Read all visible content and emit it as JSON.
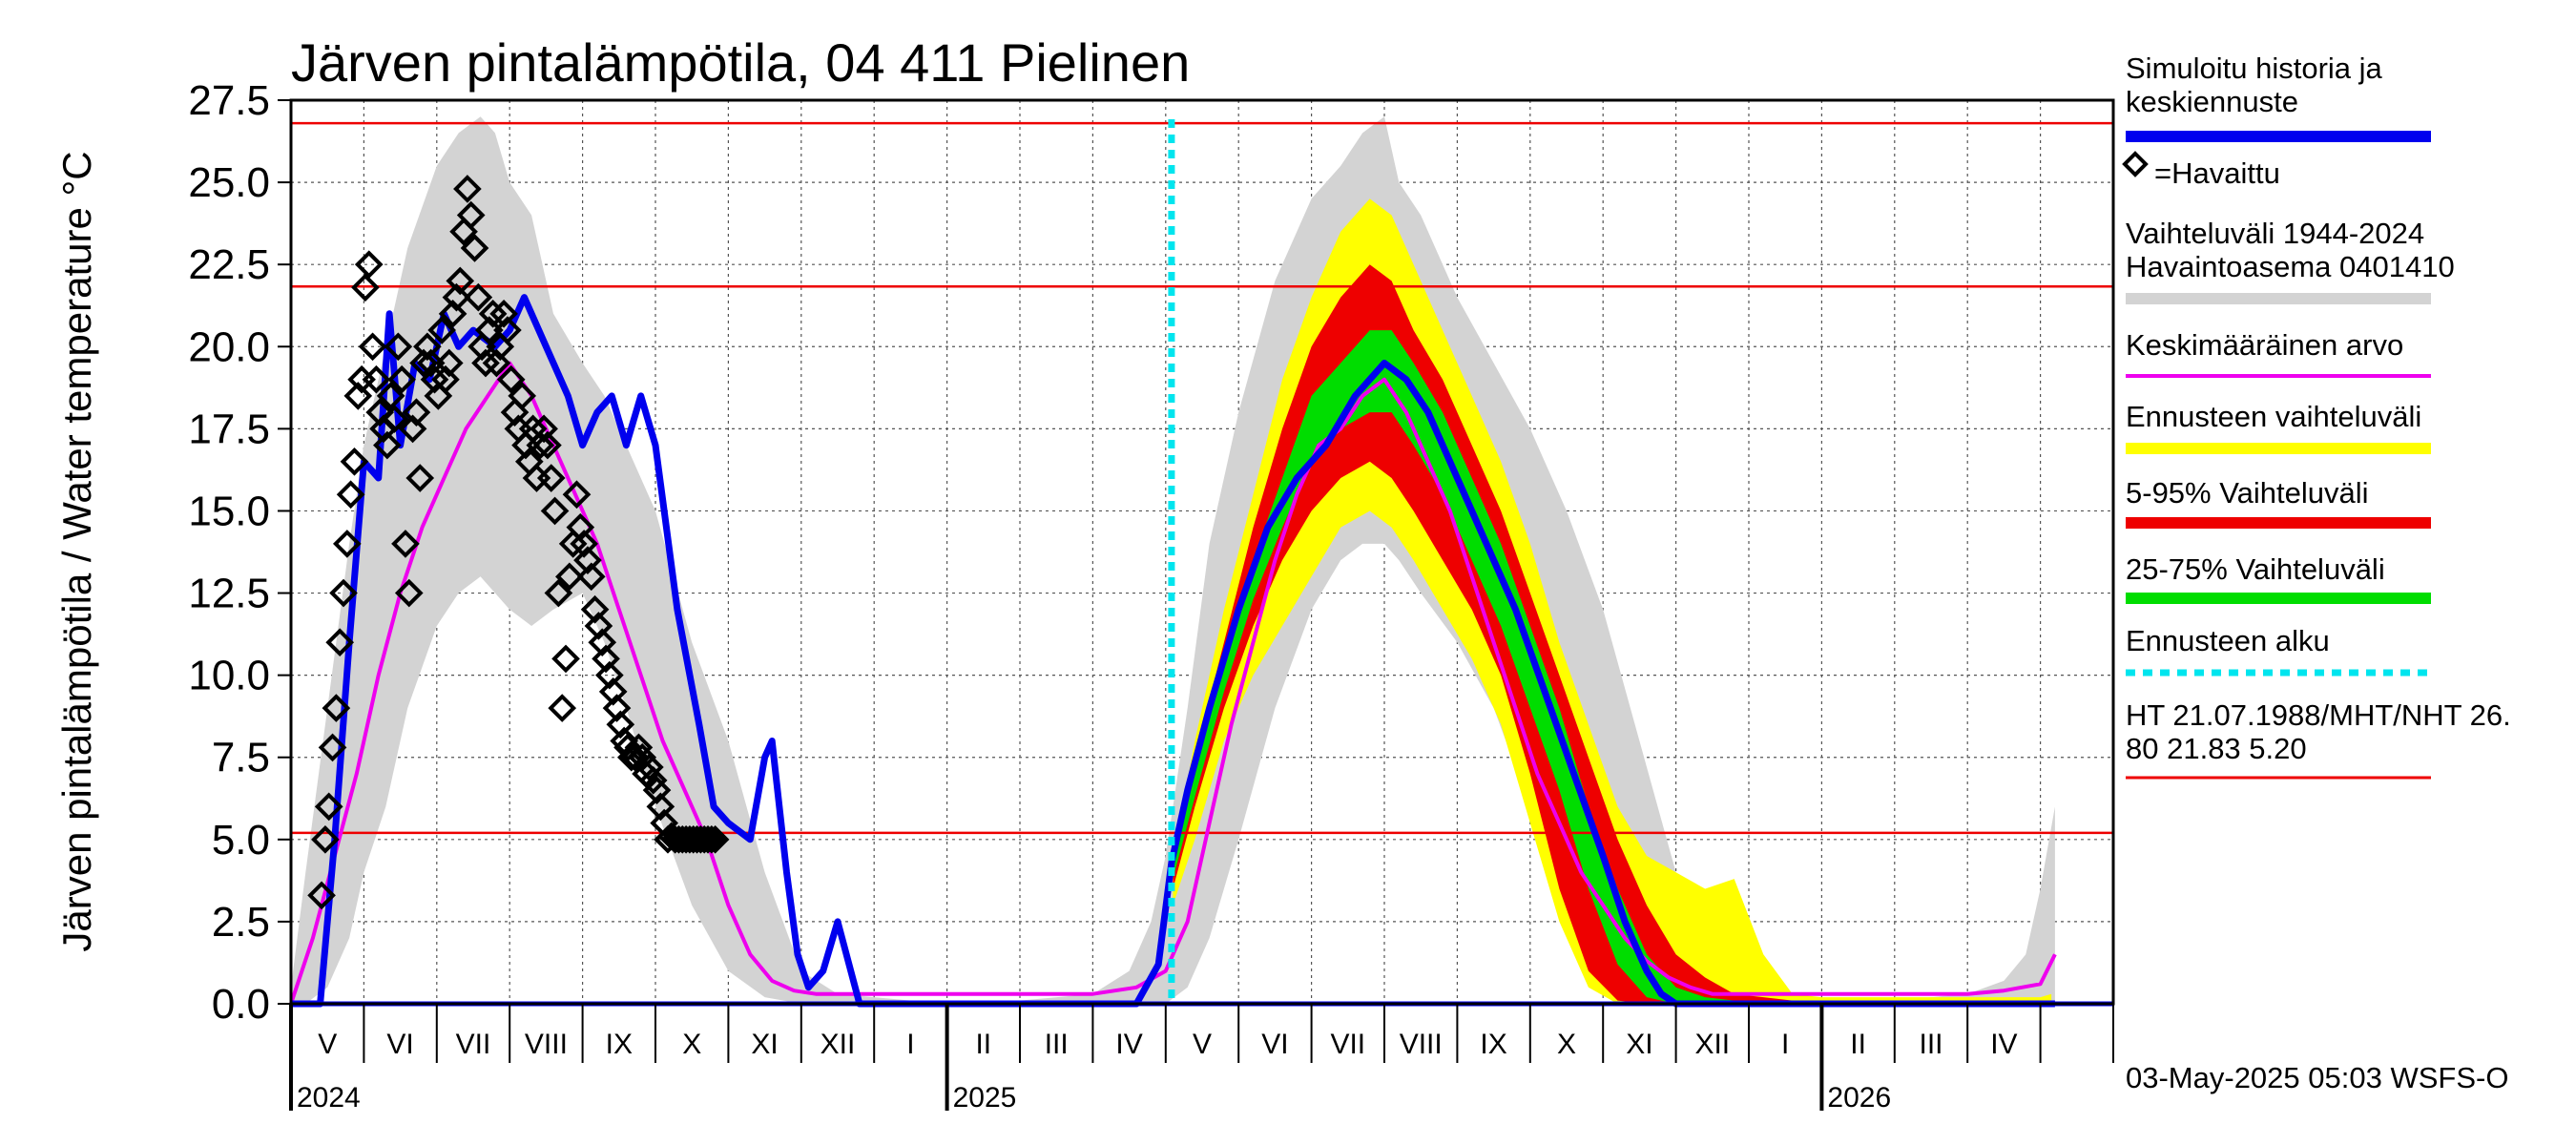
{
  "chart_data": {
    "type": "line",
    "title": "Järven pintalämpötila, 04 411 Pielinen",
    "ylabel": "Järven pintalämpötila / Water temperature °C",
    "xlabel": "",
    "ylim": [
      0,
      27.5
    ],
    "yticks": [
      "0.0",
      "2.5",
      "5.0",
      "7.5",
      "10.0",
      "12.5",
      "15.0",
      "17.5",
      "20.0",
      "22.5",
      "25.0",
      "27.5"
    ],
    "x_range_months": [
      0,
      25
    ],
    "x_start_month": "2024-04-01",
    "months": [
      "V",
      "VI",
      "VII",
      "VIII",
      "IX",
      "X",
      "XI",
      "XII",
      "I",
      "II",
      "III",
      "IV",
      "V",
      "VI",
      "VII",
      "VIII",
      "IX",
      "X",
      "XI",
      "XII",
      "I",
      "II",
      "III",
      "IV"
    ],
    "years": [
      {
        "label": "2024",
        "month_index": 0
      },
      {
        "label": "2025",
        "month_index": 9
      },
      {
        "label": "2026",
        "month_index": 21
      }
    ],
    "forecast_start_month": 12.08,
    "reference_lines": [
      {
        "name": "HT",
        "value": 26.8,
        "color": "#ee0000"
      },
      {
        "name": "MHT",
        "value": 21.83,
        "color": "#ee0000"
      },
      {
        "name": "NHT",
        "value": 5.2,
        "color": "#ee0000"
      }
    ],
    "legend": [
      {
        "key": "sim",
        "label_lines": [
          "Simuloitu historia ja",
          "keskiennuste"
        ],
        "color": "#0000ee",
        "style": "line"
      },
      {
        "key": "obs",
        "label_lines": [
          "=Havaittu"
        ],
        "color": "#000000",
        "style": "marker"
      },
      {
        "key": "range",
        "label_lines": [
          "Vaihteluväli 1944-2024",
          " Havaintoasema 0401410"
        ],
        "color": "#d3d3d3",
        "style": "line"
      },
      {
        "key": "mean",
        "label_lines": [
          "Keskimääräinen arvo"
        ],
        "color": "#ee00ee",
        "style": "line"
      },
      {
        "key": "fc_range",
        "label_lines": [
          "Ennusteen vaihteluväli"
        ],
        "color": "#ffff00",
        "style": "line"
      },
      {
        "key": "p5_95",
        "label_lines": [
          "5-95% Vaihteluväli"
        ],
        "color": "#ee0000",
        "style": "line"
      },
      {
        "key": "p25_75",
        "label_lines": [
          "25-75% Vaihteluväli"
        ],
        "color": "#00dd00",
        "style": "line"
      },
      {
        "key": "fc_start",
        "label_lines": [
          "Ennusteen alku"
        ],
        "color": "#00e5ee",
        "style": "dash"
      },
      {
        "key": "ht",
        "label_lines": [
          "HT 21.07.1988/MHT/NHT 26.",
          "80 21.83 5.20"
        ],
        "color": "#ee0000",
        "style": "line"
      }
    ],
    "series": {
      "hist_band": {
        "x": [
          0,
          0.2,
          0.5,
          0.8,
          1.0,
          1.3,
          1.6,
          2.0,
          2.3,
          2.6,
          2.8,
          3.0,
          3.3,
          3.6,
          4.0,
          4.3,
          4.6,
          5.0,
          5.5,
          6.0,
          6.5,
          7.0,
          7.5,
          8.0,
          8.5,
          9.0,
          10.0,
          11.0,
          11.5,
          11.8,
          12.0,
          12.3,
          12.6,
          13.0,
          13.5,
          14.0,
          14.4,
          14.7,
          15.0,
          15.2,
          15.5,
          16.0,
          16.5,
          17.0,
          17.5,
          18.0,
          18.5,
          19.0,
          19.5,
          20.0,
          21.0,
          22.0,
          23.0,
          23.5,
          23.8,
          24.0,
          24.2
        ],
        "upper": [
          0.5,
          4,
          9,
          14,
          17,
          20,
          23,
          25.5,
          26.5,
          27,
          26.5,
          25,
          24,
          21,
          19.5,
          18.5,
          17,
          15,
          11,
          8,
          4,
          1,
          0.3,
          0.2,
          0.1,
          0.1,
          0.1,
          0.3,
          1,
          2.5,
          4.5,
          9,
          14,
          18,
          22,
          24.5,
          25.5,
          26.5,
          27,
          25,
          24,
          21.5,
          19.5,
          17.5,
          15,
          12,
          8,
          4,
          1,
          0.3,
          0.1,
          0.1,
          0.3,
          0.7,
          1.5,
          3.5,
          6
        ],
        "lower": [
          0,
          0,
          0.5,
          2,
          4,
          6,
          9,
          11.5,
          12.5,
          13,
          12.5,
          12,
          11.5,
          12,
          12.5,
          11,
          9,
          6,
          3,
          1,
          0.2,
          0,
          0,
          0,
          0,
          0,
          0,
          0,
          0,
          0,
          0,
          0.5,
          2,
          5,
          9,
          12,
          13.5,
          14,
          14,
          13.5,
          12.5,
          11,
          9,
          6,
          3,
          1,
          0.2,
          0,
          0,
          0,
          0,
          0,
          0,
          0,
          0,
          0,
          0
        ]
      },
      "fc_yellow": {
        "x": [
          12.1,
          12.4,
          12.8,
          13.2,
          13.6,
          14.0,
          14.4,
          14.8,
          15.1,
          15.4,
          15.8,
          16.2,
          16.6,
          17.0,
          17.4,
          17.8,
          18.2,
          18.6,
          19.0,
          19.4,
          19.8,
          20.2,
          20.6,
          21.0,
          24.0,
          24.15
        ],
        "upper": [
          4.5,
          8,
          12,
          15.5,
          19,
          21.5,
          23.5,
          24.5,
          24,
          22.5,
          20.5,
          18.5,
          16.5,
          14,
          11,
          8.5,
          6,
          4.5,
          4,
          3.5,
          3.8,
          1.5,
          0.3,
          0.2,
          0.2,
          0.3
        ],
        "lower": [
          3,
          5,
          8,
          10,
          11.5,
          13,
          14.5,
          15,
          14.5,
          13.5,
          12,
          10.5,
          8.5,
          5.5,
          2.5,
          0.5,
          0,
          0,
          0,
          0,
          0,
          0,
          0,
          0,
          0,
          0
        ]
      },
      "fc_red": {
        "x": [
          12.1,
          12.4,
          12.8,
          13.2,
          13.6,
          14.0,
          14.4,
          14.8,
          15.1,
          15.4,
          15.8,
          16.2,
          16.6,
          17.0,
          17.4,
          17.8,
          18.2,
          18.6,
          19.0,
          19.4,
          19.8,
          20.2,
          20.6,
          21.0,
          24.0,
          24.15
        ],
        "upper": [
          4.3,
          7.5,
          11,
          14.5,
          17.5,
          20,
          21.5,
          22.5,
          22,
          20.5,
          19,
          17,
          15,
          12.5,
          10,
          7.5,
          5,
          3,
          1.5,
          0.8,
          0.3,
          0.2,
          0.1,
          0.1,
          0.1,
          0.1
        ],
        "lower": [
          3.5,
          6,
          9,
          11.5,
          13.5,
          15,
          16,
          16.5,
          16,
          15,
          13.5,
          12,
          10,
          7,
          3.5,
          1,
          0.1,
          0,
          0,
          0,
          0,
          0,
          0,
          0,
          0,
          0
        ]
      },
      "fc_green": {
        "x": [
          12.1,
          12.4,
          12.8,
          13.2,
          13.6,
          14.0,
          14.4,
          14.8,
          15.1,
          15.4,
          15.8,
          16.2,
          16.6,
          17.0,
          17.4,
          17.8,
          18.2,
          18.6,
          19.0,
          19.4,
          19.8
        ],
        "upper": [
          4.2,
          7,
          10.5,
          13.5,
          16,
          18.5,
          19.5,
          20.5,
          20.5,
          19.5,
          18,
          16,
          14,
          11.5,
          9,
          6,
          3.5,
          1.5,
          0.5,
          0.2,
          0.1
        ],
        "lower": [
          3.8,
          6.3,
          9.5,
          12.3,
          14.5,
          16.5,
          17.5,
          18,
          18,
          17,
          15.5,
          13.5,
          11.5,
          9,
          6.5,
          3.5,
          1.2,
          0.2,
          0,
          0,
          0
        ]
      },
      "sim_mean": {
        "x": [
          0,
          0.4,
          0.6,
          0.8,
          1.0,
          1.2,
          1.35,
          1.5,
          1.7,
          1.9,
          2.1,
          2.3,
          2.5,
          2.8,
          3.0,
          3.2,
          3.5,
          3.8,
          4.0,
          4.2,
          4.4,
          4.6,
          4.8,
          5.0,
          5.3,
          5.6,
          5.8,
          6.0,
          6.3,
          6.5,
          6.6,
          6.8,
          6.95,
          7.1,
          7.3,
          7.5,
          7.8,
          8.0,
          8.5,
          9.0,
          10.0,
          11.0,
          11.6,
          11.9,
          12.08,
          12.3,
          12.6,
          13.0,
          13.4,
          13.8,
          14.2,
          14.6,
          15.0,
          15.3,
          15.6,
          16.0,
          16.4,
          16.8,
          17.2,
          17.6,
          18.0,
          18.3,
          18.6,
          18.8,
          19.0,
          20.0,
          21.0,
          22.0,
          23.0,
          24.0,
          24.2
        ],
        "y": [
          0,
          0,
          5,
          11,
          16.5,
          16,
          21,
          17,
          19.5,
          19,
          21,
          20,
          20.5,
          20,
          20.5,
          21.5,
          20,
          18.5,
          17,
          18,
          18.5,
          17,
          18.5,
          17,
          12,
          8.5,
          6,
          5.5,
          5,
          7.5,
          8,
          4,
          1.5,
          0.5,
          1,
          2.5,
          0,
          0,
          0,
          0,
          0,
          0,
          0,
          1.2,
          4.3,
          6.5,
          9,
          12,
          14.5,
          16,
          17,
          18.5,
          19.5,
          19,
          18,
          16,
          14,
          12,
          9.5,
          7,
          4.5,
          2.5,
          1,
          0.3,
          0,
          0,
          0,
          0,
          0,
          0,
          0
        ]
      },
      "mean": {
        "x": [
          0,
          0.3,
          0.6,
          0.9,
          1.2,
          1.5,
          1.8,
          2.1,
          2.4,
          2.7,
          3.0,
          3.3,
          3.6,
          3.9,
          4.2,
          4.5,
          4.8,
          5.1,
          5.4,
          5.7,
          6.0,
          6.3,
          6.6,
          6.9,
          7.2,
          7.5,
          8.0,
          9.0,
          10.0,
          11.0,
          11.6,
          12.0,
          12.3,
          12.6,
          12.9,
          13.2,
          13.5,
          13.8,
          14.1,
          14.4,
          14.7,
          15.0,
          15.3,
          15.6,
          15.9,
          16.2,
          16.5,
          16.8,
          17.1,
          17.4,
          17.7,
          18.0,
          18.3,
          18.6,
          18.9,
          19.2,
          19.5,
          20.0,
          21.0,
          22.0,
          23.0,
          23.5,
          24.0,
          24.2
        ],
        "y": [
          0,
          2,
          4.5,
          7,
          10,
          12.5,
          14.5,
          16,
          17.5,
          18.5,
          19.5,
          18.5,
          17,
          15.5,
          14,
          12,
          10,
          8,
          6.5,
          5,
          3,
          1.5,
          0.7,
          0.4,
          0.3,
          0.3,
          0.3,
          0.3,
          0.3,
          0.3,
          0.5,
          1,
          2.5,
          5.5,
          8.5,
          11,
          13.5,
          15.5,
          17,
          17.5,
          18.5,
          19,
          18,
          16.5,
          15,
          13,
          11,
          9,
          7,
          5.5,
          4,
          3,
          2,
          1.3,
          0.8,
          0.5,
          0.3,
          0.3,
          0.3,
          0.3,
          0.3,
          0.4,
          0.6,
          1.5
        ]
      },
      "observed": {
        "x": [
          0.42,
          0.47,
          0.52,
          0.57,
          0.62,
          0.67,
          0.72,
          0.77,
          0.82,
          0.87,
          0.92,
          0.97,
          1.02,
          1.07,
          1.12,
          1.17,
          1.22,
          1.27,
          1.32,
          1.37,
          1.42,
          1.47,
          1.52,
          1.57,
          1.62,
          1.67,
          1.72,
          1.77,
          1.82,
          1.87,
          1.92,
          1.97,
          2.02,
          2.07,
          2.12,
          2.17,
          2.22,
          2.27,
          2.32,
          2.37,
          2.42,
          2.47,
          2.52,
          2.57,
          2.62,
          2.67,
          2.72,
          2.77,
          2.82,
          2.87,
          2.92,
          2.97,
          3.02,
          3.07,
          3.12,
          3.17,
          3.22,
          3.27,
          3.32,
          3.37,
          3.42,
          3.47,
          3.52,
          3.57,
          3.62,
          3.67,
          3.72,
          3.77,
          3.82,
          3.87,
          3.92,
          3.97,
          4.02,
          4.07,
          4.12,
          4.17,
          4.22,
          4.27,
          4.32,
          4.37,
          4.42,
          4.47,
          4.52,
          4.57,
          4.62,
          4.67,
          4.72,
          4.77,
          4.82,
          4.87,
          4.92,
          4.97,
          5.02,
          5.07,
          5.12,
          5.17,
          5.22,
          5.27,
          5.32,
          5.37,
          5.42,
          5.47,
          5.52,
          5.57,
          5.62,
          5.67,
          5.72,
          5.77,
          5.82
        ],
        "y": [
          3.3,
          5.0,
          6.0,
          7.8,
          9.0,
          11.0,
          12.5,
          14.0,
          15.5,
          16.5,
          18.5,
          19.0,
          21.8,
          22.5,
          20.0,
          19.0,
          18.0,
          17.5,
          17.0,
          18.5,
          17.8,
          20.0,
          19.0,
          14.0,
          12.5,
          17.5,
          18.0,
          16.0,
          19.5,
          20.0,
          19.5,
          19.0,
          18.5,
          20.5,
          19.0,
          19.5,
          21.0,
          21.5,
          22.0,
          23.5,
          24.8,
          24.0,
          23.0,
          21.5,
          20.0,
          19.5,
          20.5,
          21.0,
          19.5,
          20.0,
          21.0,
          20.5,
          19.0,
          18.0,
          17.5,
          18.5,
          17.0,
          16.5,
          17.5,
          16.0,
          17.0,
          17.5,
          17.0,
          16.0,
          15.0,
          12.5,
          9.0,
          10.5,
          13.0,
          14.0,
          15.5,
          14.5,
          14.0,
          13.5,
          13.0,
          12.0,
          11.5,
          11.0,
          10.5,
          10.0,
          9.5,
          9.0,
          8.5,
          8.0,
          7.8,
          7.5,
          7.5,
          7.8,
          7.5,
          7.0,
          7.2,
          6.8,
          6.5,
          6.0,
          5.5,
          5.0,
          5.1,
          5.0,
          5.0,
          5.0,
          5.0,
          5.0,
          5.0,
          5.0,
          5.0,
          5.0,
          5.0,
          5.0,
          5.0
        ]
      }
    },
    "footer": "03-May-2025 05:03 WSFS-O"
  }
}
